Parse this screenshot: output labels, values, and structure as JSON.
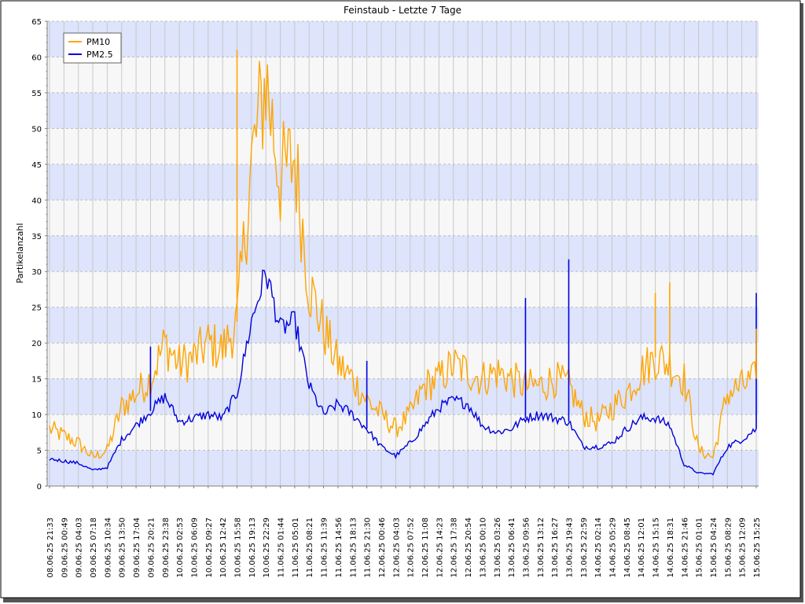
{
  "chart_data": {
    "type": "line",
    "title": "Feinstaub  - Letzte 7 Tage",
    "ylabel": "Partikelanzahl",
    "xlabel": "",
    "ylim": [
      0,
      65
    ],
    "yticks": [
      0,
      5,
      10,
      15,
      20,
      25,
      30,
      35,
      40,
      45,
      50,
      55,
      60,
      65
    ],
    "legend_position": "top-left",
    "grid": true,
    "x_tick_labels": [
      "08.06.25 21:33",
      "09.06.25 00:49",
      "09.06.25 04:03",
      "09.06.25 07:18",
      "09.06.25 10:34",
      "09.06.25 13:50",
      "09.06.25 17:04",
      "09.06.25 20:21",
      "09.06.25 23:38",
      "10.06.25 02:53",
      "10.06.25 06:09",
      "10.06.25 09:27",
      "10.06.25 12:42",
      "10.06.25 15:58",
      "10.06.25 19:13",
      "10.06.25 22:29",
      "11.06.25 01:44",
      "11.06.25 05:01",
      "11.06.25 08:21",
      "11.06.25 11:39",
      "11.06.25 14:56",
      "11.06.25 18:13",
      "11.06.25 21:30",
      "12.06.25 00:46",
      "12.06.25 04:03",
      "12.06.25 07:52",
      "12.06.25 11:08",
      "12.06.25 14:23",
      "12.06.25 17:38",
      "12.06.25 20:54",
      "13.06.25 00:10",
      "13.06.25 03:26",
      "13.06.25 06:41",
      "13.06.25 09:56",
      "13.06.25 13:12",
      "13.06.25 16:27",
      "13.06.25 19:43",
      "13.06.25 22:59",
      "14.06.25 02:14",
      "14.06.25 05:29",
      "14.06.25 08:45",
      "14.06.25 12:01",
      "14.06.25 15:15",
      "14.06.25 18:31",
      "14.06.25 21:46",
      "15.06.25 01:01",
      "15.06.25 04:24",
      "15.06.25 08:29",
      "15.06.25 12:09",
      "15.06.25 15:25"
    ],
    "x": [
      "08.06.25 21:33",
      "09.06.25 00:49",
      "09.06.25 04:03",
      "09.06.25 07:18",
      "09.06.25 10:34",
      "09.06.25 13:50",
      "09.06.25 17:04",
      "09.06.25 20:21",
      "09.06.25 23:38",
      "10.06.25 02:53",
      "10.06.25 06:09",
      "10.06.25 09:27",
      "10.06.25 12:42",
      "10.06.25 15:58",
      "10.06.25 19:13",
      "10.06.25 22:29",
      "11.06.25 01:44",
      "11.06.25 05:01",
      "11.06.25 08:21",
      "11.06.25 11:39",
      "11.06.25 14:56",
      "11.06.25 18:13",
      "11.06.25 21:30",
      "12.06.25 00:46",
      "12.06.25 04:03",
      "12.06.25 07:52",
      "12.06.25 11:08",
      "12.06.25 14:23",
      "12.06.25 17:38",
      "12.06.25 20:54",
      "13.06.25 00:10",
      "13.06.25 03:26",
      "13.06.25 06:41",
      "13.06.25 09:56",
      "13.06.25 13:12",
      "13.06.25 16:27",
      "13.06.25 19:43",
      "13.06.25 22:59",
      "14.06.25 02:14",
      "14.06.25 05:29",
      "14.06.25 08:45",
      "14.06.25 12:01",
      "14.06.25 15:15",
      "14.06.25 18:31",
      "14.06.25 21:46",
      "15.06.25 01:01",
      "15.06.25 04:24",
      "15.06.25 08:29",
      "15.06.25 12:09",
      "15.06.25 15:25"
    ],
    "series": [
      {
        "name": "PM10",
        "color": "#ffa500",
        "values": [
          8,
          7,
          6,
          4,
          5,
          11,
          13,
          15,
          20,
          17,
          18,
          20,
          19,
          23,
          45,
          57,
          43,
          46,
          28,
          22,
          17,
          15,
          12,
          10,
          8,
          10,
          14,
          15,
          17,
          16,
          15,
          16,
          15,
          14,
          14,
          15,
          14,
          10,
          9,
          11,
          13,
          16,
          18,
          17,
          15,
          5,
          4,
          13,
          14,
          15
        ]
      },
      {
        "name": "PM2.5",
        "color": "#0000dd",
        "values": [
          3.8,
          3.5,
          3.2,
          2.2,
          2.6,
          6.5,
          8.5,
          10.5,
          12.5,
          9,
          9.5,
          10,
          9.5,
          13,
          23,
          30,
          22,
          23,
          14,
          10,
          11.5,
          10,
          8,
          5.5,
          4.2,
          6,
          8.5,
          11,
          12,
          11.5,
          8.5,
          7.5,
          8,
          9.5,
          10,
          9.5,
          9,
          5.5,
          5.5,
          6,
          8,
          9.5,
          9.5,
          8.5,
          3,
          1.8,
          1.7,
          5.5,
          6.5,
          8
        ]
      }
    ],
    "spikes": [
      {
        "series": "PM2.5",
        "x": "09.06.25 20:21",
        "y": 19.5
      },
      {
        "series": "PM2.5",
        "x": "11.06.25 21:30",
        "y": 17.5
      },
      {
        "series": "PM2.5",
        "x": "13.06.25 09:56",
        "y": 26.3
      },
      {
        "series": "PM2.5",
        "x": "13.06.25 19:43",
        "y": 31.7
      },
      {
        "series": "PM2.5",
        "x": "15.06.25 15:25",
        "y": 27
      },
      {
        "series": "PM10",
        "x": "10.06.25 15:58",
        "y": 61
      },
      {
        "series": "PM10",
        "x": "14.06.25 15:15",
        "y": 27
      },
      {
        "series": "PM10",
        "x": "14.06.25 18:31",
        "y": 28.5
      },
      {
        "series": "PM10",
        "x": "15.06.25 15:25",
        "y": 22
      }
    ]
  }
}
